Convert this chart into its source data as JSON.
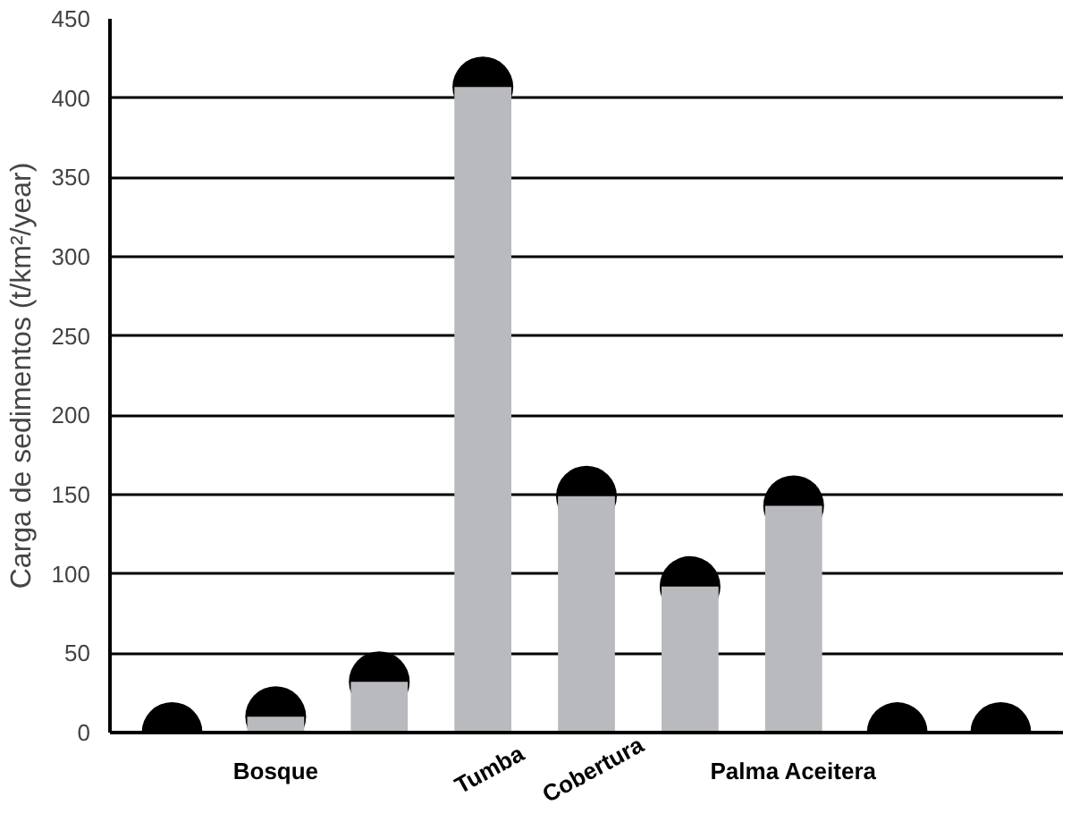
{
  "chart_data": {
    "type": "bar",
    "ylabel": "Carga de sedimentos (t/km²/year)",
    "categories": [
      null,
      "Bosque",
      null,
      "Tumba",
      "Cobertura",
      null,
      "Palma Aceitera",
      null,
      null
    ],
    "series": [
      {
        "color": "#b9babd",
        "values": [
          0,
          10,
          32,
          407,
          149,
          92,
          143,
          0,
          0
        ]
      },
      {
        "type": "scatter",
        "color": "#000000",
        "values": [
          0,
          10,
          32,
          407,
          149,
          92,
          143,
          0,
          0
        ]
      }
    ],
    "marker": "circle",
    "ylim": [
      0,
      450
    ],
    "yticks": [
      0,
      50,
      100,
      150,
      200,
      250,
      300,
      350,
      400,
      450
    ],
    "grid": "y"
  }
}
